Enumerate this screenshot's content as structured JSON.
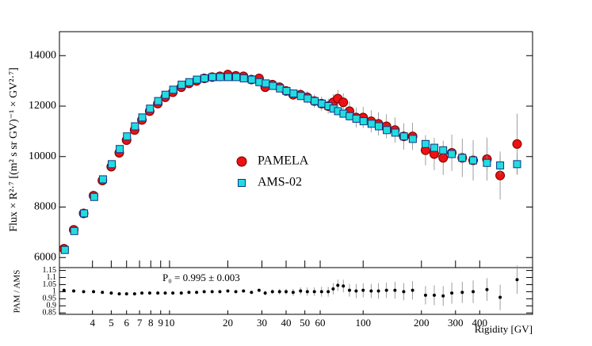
{
  "chart_data": [
    {
      "type": "scatter",
      "log_x": true,
      "ylabel": "Flux × R²·⁷ [(m² s sr GV)⁻¹ × GV²·⁷]",
      "xlim": [
        2.7,
        750
      ],
      "ylim": [
        5600,
        14950
      ],
      "yticks": [
        6000,
        8000,
        10000,
        12000,
        14000
      ],
      "series": [
        {
          "name": "PAMELA",
          "color": "#ee1111",
          "marker": "circle",
          "x": [
            2.85,
            3.2,
            3.6,
            4.05,
            4.5,
            5.0,
            5.5,
            6.0,
            6.6,
            7.2,
            7.9,
            8.7,
            9.5,
            10.4,
            11.5,
            12.6,
            13.8,
            15.1,
            16.6,
            18.2,
            20,
            22,
            24.1,
            26.5,
            29,
            31.2,
            34,
            37,
            40,
            43.5,
            47.5,
            51.5,
            56,
            61,
            66,
            70,
            74,
            79,
            85,
            92,
            100,
            110,
            120,
            132,
            146,
            162,
            180,
            210,
            233,
            259,
            287,
            325,
            370,
            436,
            510,
            624
          ],
          "values": [
            6350,
            7100,
            7750,
            8450,
            9050,
            9600,
            10150,
            10650,
            11050,
            11450,
            11800,
            12100,
            12350,
            12550,
            12750,
            12900,
            13000,
            13100,
            13150,
            13180,
            13250,
            13200,
            13180,
            13050,
            13100,
            12750,
            12850,
            12750,
            12600,
            12450,
            12450,
            12350,
            12200,
            12100,
            12000,
            12150,
            12300,
            12150,
            11800,
            11550,
            11550,
            11400,
            11300,
            11200,
            11050,
            10800,
            10800,
            10250,
            10100,
            9950,
            10150,
            9950,
            9850,
            9900,
            9250,
            10500
          ],
          "errors": [
            60,
            60,
            60,
            60,
            60,
            60,
            60,
            60,
            60,
            60,
            60,
            60,
            60,
            60,
            60,
            60,
            60,
            60,
            60,
            60,
            60,
            60,
            60,
            60,
            60,
            150,
            150,
            170,
            180,
            200,
            220,
            240,
            260,
            280,
            300,
            320,
            340,
            360,
            380,
            400,
            420,
            440,
            460,
            480,
            500,
            520,
            540,
            600,
            640,
            680,
            720,
            760,
            800,
            850,
            950,
            1200
          ]
        },
        {
          "name": "AMS-02",
          "color": "#22dddd",
          "marker": "square",
          "x": [
            2.88,
            3.22,
            3.62,
            4.08,
            4.53,
            5.03,
            5.53,
            6.03,
            6.63,
            7.23,
            7.93,
            8.73,
            9.53,
            10.45,
            11.55,
            12.65,
            13.85,
            15.15,
            16.65,
            18.25,
            20.1,
            22.1,
            24.2,
            26.6,
            29.1,
            31.4,
            34.2,
            37.2,
            40.2,
            43.7,
            47.7,
            51.7,
            56.2,
            61.2,
            66.2,
            70.2,
            74.2,
            79.2,
            85.2,
            92.2,
            100.5,
            110.5,
            120.5,
            132.5,
            146.5,
            162.5,
            180.5,
            210,
            233,
            259,
            287,
            325,
            370,
            436,
            510,
            624
          ],
          "values": [
            6300,
            7050,
            7750,
            8400,
            9100,
            9700,
            10300,
            10800,
            11200,
            11550,
            11900,
            12200,
            12450,
            12650,
            12850,
            12950,
            13050,
            13100,
            13150,
            13150,
            13150,
            13150,
            13100,
            13050,
            12950,
            12900,
            12800,
            12700,
            12600,
            12500,
            12400,
            12300,
            12200,
            12100,
            12000,
            11900,
            11800,
            11700,
            11600,
            11500,
            11400,
            11300,
            11200,
            11050,
            10950,
            10800,
            10700,
            10500,
            10350,
            10250,
            10100,
            9950,
            9850,
            9750,
            9650,
            9700
          ],
          "errors": [
            30,
            30,
            30,
            30,
            30,
            30,
            30,
            30,
            30,
            30,
            30,
            30,
            30,
            30,
            30,
            30,
            30,
            30,
            30,
            30,
            30,
            30,
            30,
            30,
            30,
            30,
            30,
            30,
            30,
            30,
            30,
            30,
            30,
            30,
            30,
            30,
            30,
            30,
            30,
            30,
            50,
            60,
            70,
            80,
            90,
            100,
            120,
            140,
            160,
            180,
            200,
            230,
            260,
            300,
            360,
            420
          ]
        }
      ]
    },
    {
      "type": "scatter",
      "log_x": true,
      "ylabel": "PAM / AMS",
      "xlabel": "Rigidity [GV]",
      "annotation": "P₀ = 0.995 ± 0.003",
      "xlim": [
        2.7,
        750
      ],
      "ylim": [
        0.84,
        1.17
      ],
      "xticks": [
        4,
        5,
        6,
        7,
        8,
        9,
        10,
        20,
        30,
        40,
        50,
        60,
        100,
        200,
        300,
        400
      ],
      "yticks": [
        0.85,
        0.9,
        0.95,
        1,
        1.05,
        1.1,
        1.15
      ],
      "series": [
        {
          "color": "#000000",
          "marker": "dot",
          "x": [
            2.85,
            3.2,
            3.6,
            4.05,
            4.5,
            5.0,
            5.5,
            6.0,
            6.6,
            7.2,
            7.9,
            8.7,
            9.5,
            10.4,
            11.5,
            12.6,
            13.8,
            15.1,
            16.6,
            18.2,
            20,
            22,
            24.1,
            26.5,
            29,
            31.2,
            34,
            37,
            40,
            43.5,
            47.5,
            51.5,
            56,
            61,
            66,
            70,
            74,
            79,
            85,
            92,
            100,
            110,
            120,
            132,
            146,
            162,
            180,
            210,
            233,
            259,
            287,
            325,
            370,
            436,
            510,
            624
          ],
          "values": [
            1.01,
            1.005,
            1.0,
            1.0,
            0.995,
            0.99,
            0.985,
            0.985,
            0.985,
            0.99,
            0.99,
            0.99,
            0.99,
            0.99,
            0.99,
            0.995,
            0.995,
            1.0,
            1.0,
            1.0,
            1.005,
            1.0,
            1.005,
            0.995,
            1.01,
            0.99,
            1.0,
            1.0,
            1.0,
            0.995,
            1.005,
            1.0,
            1.0,
            1.0,
            1.0,
            1.02,
            1.045,
            1.04,
            1.01,
            1.005,
            1.01,
            1.005,
            1.005,
            1.01,
            1.01,
            1.0,
            1.01,
            0.975,
            0.975,
            0.97,
            0.99,
            0.995,
            1.0,
            1.015,
            0.96,
            1.085
          ],
          "errors": [
            0.005,
            0.005,
            0.005,
            0.005,
            0.005,
            0.005,
            0.005,
            0.005,
            0.005,
            0.005,
            0.005,
            0.005,
            0.005,
            0.005,
            0.005,
            0.005,
            0.005,
            0.005,
            0.005,
            0.005,
            0.005,
            0.005,
            0.005,
            0.005,
            0.005,
            0.015,
            0.015,
            0.02,
            0.02,
            0.025,
            0.025,
            0.03,
            0.03,
            0.035,
            0.035,
            0.04,
            0.04,
            0.045,
            0.045,
            0.05,
            0.05,
            0.05,
            0.055,
            0.055,
            0.06,
            0.06,
            0.065,
            0.065,
            0.07,
            0.07,
            0.075,
            0.075,
            0.08,
            0.08,
            0.09,
            0.1
          ]
        }
      ]
    }
  ]
}
